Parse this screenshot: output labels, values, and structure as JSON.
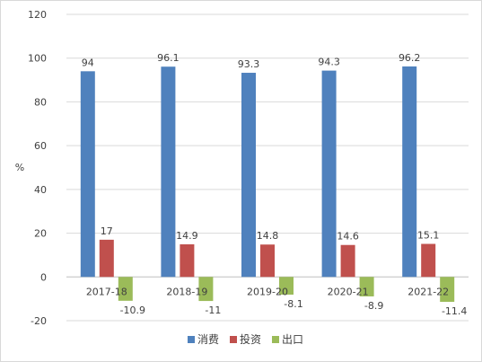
{
  "chart_data": {
    "type": "bar",
    "title": "",
    "xlabel": "",
    "ylabel": "%",
    "ylim": [
      -20,
      120
    ],
    "yticks": [
      -20,
      0,
      20,
      40,
      60,
      80,
      100,
      120
    ],
    "grid": true,
    "legend_position": "bottom",
    "categories": [
      "2017-18",
      "2018-19",
      "2019-20",
      "2020-21",
      "2021-22"
    ],
    "series": [
      {
        "name": "消费",
        "color": "#4f81bd",
        "values": [
          94,
          96.1,
          93.3,
          94.3,
          96.2
        ]
      },
      {
        "name": "投资",
        "color": "#c0504d",
        "values": [
          17,
          14.9,
          14.8,
          14.6,
          15.1
        ]
      },
      {
        "name": "出口",
        "color": "#9bbb59",
        "values": [
          -10.9,
          -11,
          -8.1,
          -8.9,
          -11.4
        ]
      }
    ]
  }
}
